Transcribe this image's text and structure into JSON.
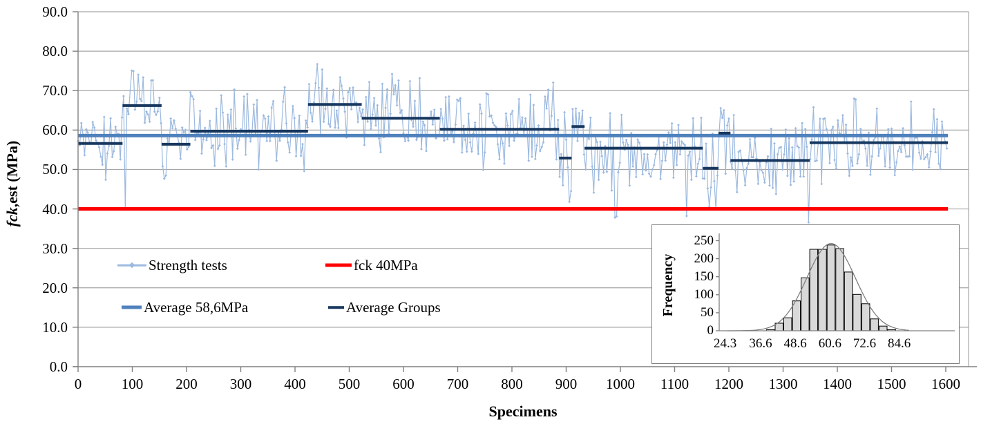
{
  "page": {
    "background": "#FFFFFF"
  },
  "legend": {
    "items": [
      {
        "label": "Strength tests",
        "color": "#9CB9DF",
        "style": "line-marker"
      },
      {
        "label": "fck 40MPa",
        "color": "#FF0000",
        "style": "thick-line"
      },
      {
        "label": "Average 58,6MPa",
        "color": "#4F81BD",
        "style": "thick-line"
      },
      {
        "label": "Average Groups",
        "color": "#17375E",
        "style": "line"
      }
    ]
  },
  "chart_data": [
    {
      "type": "line",
      "title": "",
      "xlabel": "Specimens",
      "ylabel_italic": "fck",
      "ylabel_rest": ",est (MPa)",
      "xlim": [
        0,
        1650
      ],
      "ylim": [
        0,
        90
      ],
      "grid": true,
      "legend_position": "inside-top-left",
      "x_tick_values": [
        0,
        100,
        200,
        300,
        400,
        500,
        600,
        700,
        800,
        900,
        1000,
        1100,
        1200,
        1300,
        1400,
        1500,
        1600
      ],
      "x_tick_labels": [
        "0",
        "100",
        "200",
        "300",
        "400",
        "500",
        "600",
        "700",
        "800",
        "900",
        "1000",
        "1100",
        "1200",
        "1300",
        "1400",
        "1500",
        "1600"
      ],
      "y_tick_values": [
        90,
        80,
        70,
        60,
        50,
        40,
        30,
        20,
        10,
        0
      ],
      "y_tick_labels": [
        "90.0",
        "80.0",
        "70.0",
        "60.0",
        "50.0",
        "40.0",
        "30.0",
        "20.0",
        "10.0",
        "0.0"
      ],
      "colors": {
        "points": "#9CB9DF",
        "average": "#4F81BD",
        "groups": "#17375E",
        "fck": "#FF0000",
        "grid": "#A6A6A6",
        "axis": "#808080"
      },
      "group_segments": [
        {
          "from": 0,
          "to": 82,
          "value": 56.6
        },
        {
          "from": 82,
          "to": 154,
          "value": 66.2
        },
        {
          "from": 154,
          "to": 207,
          "value": 56.4
        },
        {
          "from": 207,
          "to": 424,
          "value": 59.7
        },
        {
          "from": 424,
          "to": 523,
          "value": 66.5
        },
        {
          "from": 523,
          "to": 667,
          "value": 63.0
        },
        {
          "from": 667,
          "to": 887,
          "value": 60.2
        },
        {
          "from": 887,
          "to": 910,
          "value": 52.9
        },
        {
          "from": 910,
          "to": 934,
          "value": 60.9
        },
        {
          "from": 934,
          "to": 1152,
          "value": 55.4
        },
        {
          "from": 1152,
          "to": 1181,
          "value": 50.3
        },
        {
          "from": 1181,
          "to": 1203,
          "value": 59.2
        },
        {
          "from": 1203,
          "to": 1349,
          "value": 52.3
        },
        {
          "from": 1349,
          "to": 1604,
          "value": 56.8
        }
      ],
      "series": [
        {
          "name": "Strength tests",
          "kind": "scatter-line",
          "marker": "diamond",
          "synthetic": {
            "x_end": 1604,
            "step": 3,
            "seed": 9,
            "noise": 12.5,
            "clamp": [
              40.0,
              80.3
            ],
            "outliers": [
              {
                "x": 87,
                "y": 40.0
              },
              {
                "x": 990,
                "y": 37.8
              },
              {
                "x": 993,
                "y": 38.1
              },
              {
                "x": 1122,
                "y": 38.2
              },
              {
                "x": 1347,
                "y": 36.6
              }
            ]
          }
        },
        {
          "name": "fck 40MPa",
          "kind": "hline",
          "value": 40,
          "span": [
            0,
            1604
          ]
        },
        {
          "name": "Average 58,6MPa",
          "kind": "hline",
          "value": 58.6,
          "span": [
            0,
            1604
          ]
        },
        {
          "name": "Average Groups",
          "kind": "segments"
        }
      ]
    },
    {
      "type": "bar",
      "subtype": "histogram-inset",
      "ylabel": "Frequency",
      "ylim": [
        0,
        250
      ],
      "y_tick_values": [
        250,
        200,
        150,
        100,
        50,
        0
      ],
      "y_tick_labels": [
        "250",
        "200",
        "150",
        "100",
        "50",
        "0"
      ],
      "x_tick_values": [
        24.3,
        36.6,
        48.6,
        60.6,
        72.6,
        84.6
      ],
      "x_tick_labels": [
        "24.3",
        "36.6",
        "48.6",
        "60.6",
        "72.6",
        "84.6"
      ],
      "bin_start": 40,
      "bin_step": 3,
      "bin_centers": [
        40,
        43,
        46,
        49,
        52,
        55,
        58,
        61,
        64,
        67,
        70,
        73,
        76,
        79,
        82
      ],
      "values": [
        3,
        21,
        36,
        83,
        147,
        226,
        226,
        238,
        228,
        163,
        101,
        75,
        33,
        13,
        3
      ],
      "bar_fill": "#D9D9D9",
      "bar_stroke": "#000000",
      "normal_curve": {
        "mean": 61,
        "std": 8.4,
        "peak": 242,
        "color": "#7F7F7F"
      }
    }
  ]
}
